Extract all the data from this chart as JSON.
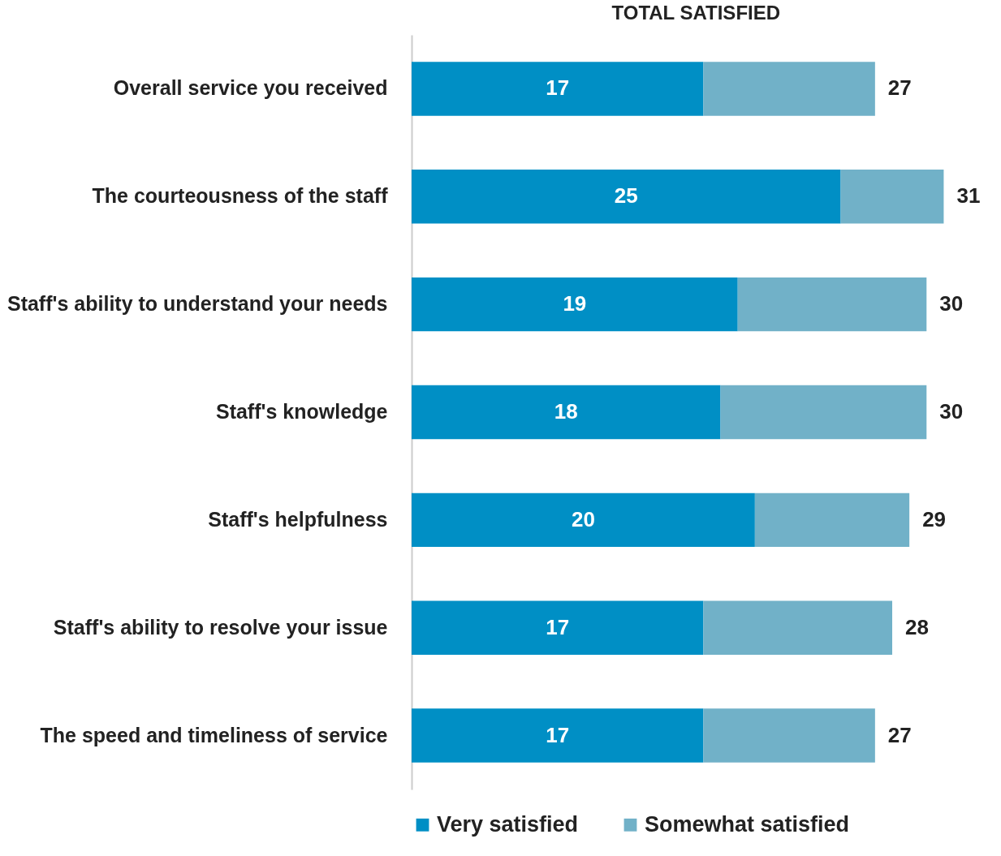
{
  "chart_data": {
    "type": "bar",
    "orientation": "horizontal",
    "stacked": true,
    "categories": [
      "Overall service you received",
      "The courteousness of the staff",
      "Staff's ability to understand your needs",
      "Staff's knowledge",
      "Staff's helpfulness",
      "Staff's ability to resolve your issue",
      "The speed and timeliness of service"
    ],
    "series": [
      {
        "name": "Very satisfied",
        "color": "#008fc5",
        "values": [
          17,
          25,
          19,
          18,
          20,
          17,
          17
        ],
        "value_labels": [
          "17",
          "25",
          "19",
          "18",
          "20",
          "17",
          "17"
        ]
      },
      {
        "name": "Somewhat satisfied",
        "color": "#71b1c8",
        "values": [
          10,
          6,
          11,
          12,
          9,
          11,
          10
        ]
      }
    ],
    "totals": [
      "27",
      "31",
      "30",
      "30",
      "29",
      "28",
      "27"
    ],
    "annotations": [
      "TOTAL SATISFIED"
    ],
    "legend": "bottom"
  }
}
